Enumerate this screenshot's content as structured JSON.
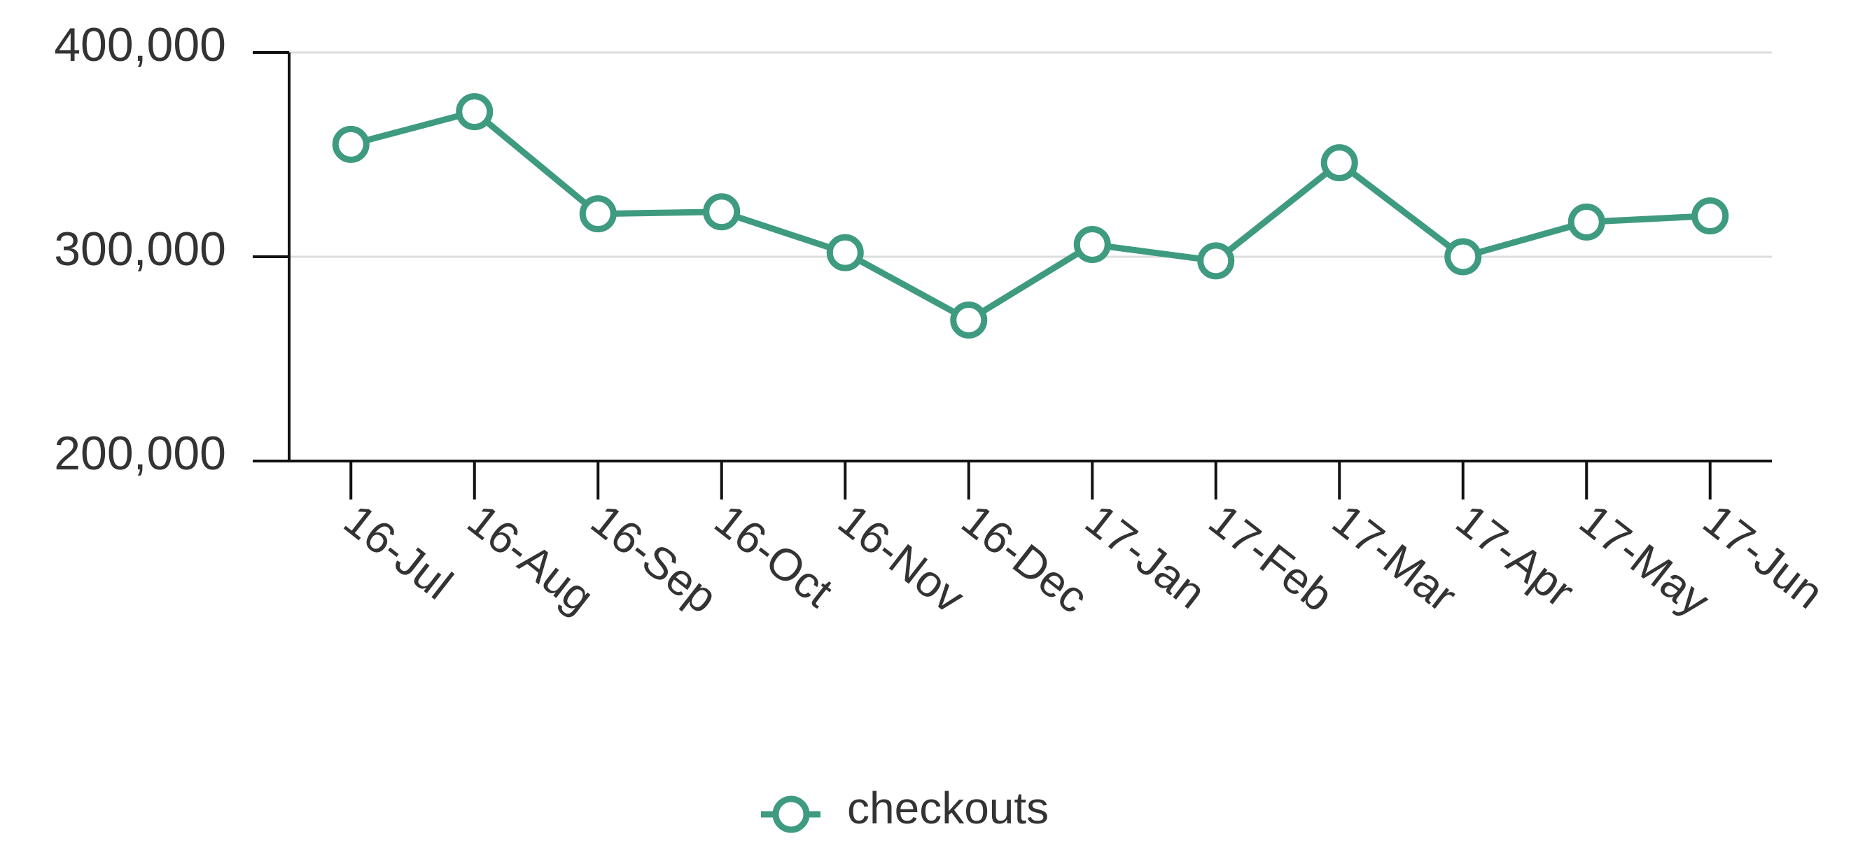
{
  "chart_data": {
    "type": "line",
    "categories": [
      "16-Jul",
      "16-Aug",
      "16-Sep",
      "16-Oct",
      "16-Nov",
      "16-Dec",
      "17-Jan",
      "17-Feb",
      "17-Mar",
      "17-Apr",
      "17-May",
      "17-Jun"
    ],
    "series": [
      {
        "name": "checkouts",
        "color": "#3f9b80",
        "values": [
          355000,
          371000,
          321000,
          322000,
          302000,
          269000,
          306000,
          298000,
          346000,
          300000,
          317000,
          320000
        ]
      }
    ],
    "ylim": [
      200000,
      400000
    ],
    "yticks": [
      {
        "value": 200000,
        "label": "200,000"
      },
      {
        "value": 300000,
        "label": "300,000"
      },
      {
        "value": 400000,
        "label": "400,000"
      }
    ],
    "grid": true,
    "legend": "bottom"
  }
}
